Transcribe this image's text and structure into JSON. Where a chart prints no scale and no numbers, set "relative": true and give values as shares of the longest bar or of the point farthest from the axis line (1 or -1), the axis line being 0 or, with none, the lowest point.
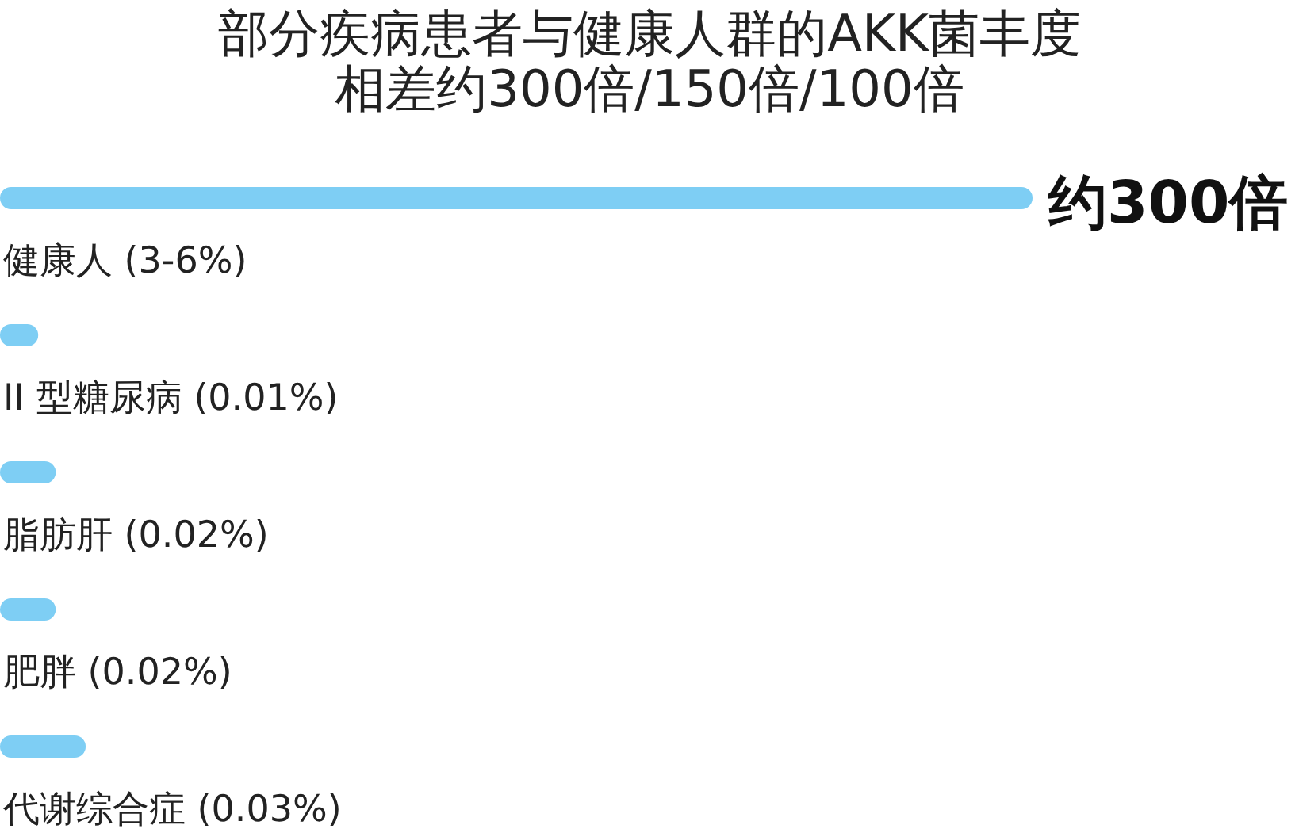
{
  "chart_data": {
    "type": "bar",
    "orientation": "horizontal",
    "relative": true,
    "title": "部分疾病患者与健康人群的AKK菌丰度",
    "subtitle": "相差约300倍/150倍/100倍",
    "categories": [
      "健康人 (3-6%)",
      "II 型糖尿病 (0.01%)",
      "脂肪肝 (0.02%)",
      "肥胖 (0.02%)",
      "代谢综合症 (0.03%)"
    ],
    "values": [
      1,
      0.037,
      0.054,
      0.054,
      0.083
    ],
    "color": "#7ecef4",
    "annotations": [
      "约300倍"
    ]
  }
}
